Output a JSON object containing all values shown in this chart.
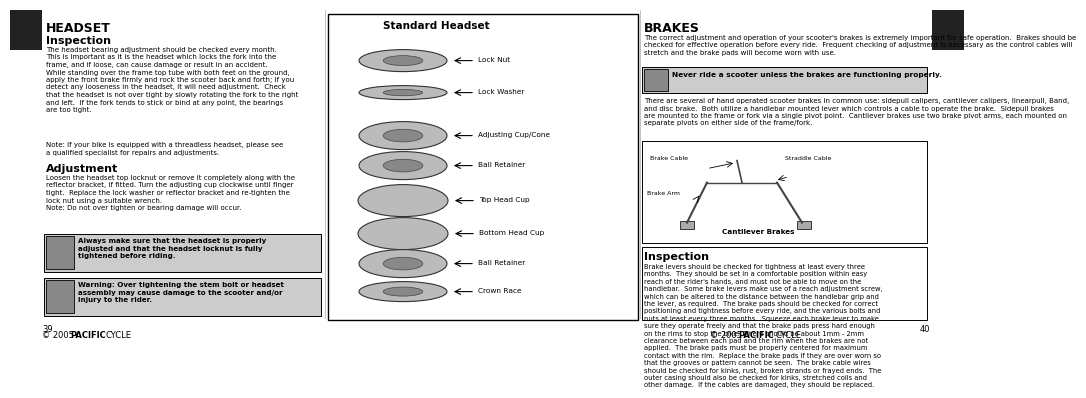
{
  "page_bg": "#ffffff",
  "headset_title": "HEADSET",
  "inspection_h1": "Inspection",
  "inspection_text": "The headset bearing adjustment should be checked every month.\nThis is important as it is the headset which locks the fork into the\nframe, and if loose, can cause damage or result in an accident.\nWhile standing over the frame top tube with both feet on the ground,\napply the front brake firmly and rock the scooter back and forth; if you\ndetect any looseness in the headset, it will need adjustment.  Check\nthat the headset is not over tight by slowly rotating the fork to the right\nand left.  If the fork tends to stick or bind at any point, the bearings\nare too tight.",
  "note_text": "Note: If your bike is equipped with a threadless headset, please see\na qualified specialist for repairs and adjustments.",
  "adjustment_h1": "Adjustment",
  "adjustment_text": "Loosen the headset top locknut or remove it completely along with the\nreflector bracket, if fitted. Turn the adjusting cup clockwise until finger\ntight.  Replace the lock washer or reflector bracket and re-tighten the\nlock nut using a suitable wrench.\nNote: Do not over tighten or bearing damage will occur.",
  "warning1_bold": "Always make sure that the headset is properly\nadjusted and that the headset locknut is fully\ntightened before riding.",
  "warning2_text": "Warning: Over tightening the stem bolt or headset\nassembly may cause damage to the scooter and/or\ninjury to the rider.",
  "page_num_left": "39",
  "center_title": "Standard Headset",
  "center_labels": [
    "Lock Nut",
    "Lock Washer",
    "Adjusting Cup/Cone",
    "Ball Retainer",
    "Top Head Cup",
    "Bottom Head Cup",
    "Ball Retainer",
    "Crown Race"
  ],
  "brakes_title": "BRAKES",
  "brakes_intro": "The correct adjustment and operation of your scooter's brakes is extremely important for safe operation.  Brakes should be\nchecked for effective operation before every ride.  Frequent checking of adjustment is necessary as the control cables will\nstretch and the brake pads will become worn with use.",
  "never_ride_bold": "Never ride a scooter unless the brakes are functioning properly.",
  "brakes_types": "There are several of hand operated scooter brakes in common use: sidepull calipers, cantilever calipers, linearpull, Band,\nand disc brake.  Both utilize a handlebar mounted lever which controls a cable to operate the brake.  Sidepull brakes\nare mounted to the frame or fork via a single pivot point.  Cantilever brakes use two brake pivot arms, each mounted on\nseparate pivots on either side of the frame/fork.",
  "cantilever_caption": "Cantilever Brakes",
  "brake_inspection_h1": "Inspection",
  "brake_inspection_text": "Brake levers should be checked for tightness at least every three\nmonths.  They should be set in a comfortable position within easy\nreach of the rider's hands, and must not be able to move on the\nhandlebar.  Some brake levers make use of a reach adjustment screw,\nwhich can be altered to the distance between the handlebar grip and\nthe lever, as required.  The brake pads should be checked for correct\npositioning and tightness before every ride, and the various bolts and\nnuts at least every three months.  Squeeze each brake lever to make\nsure they operate freely and that the brake pads press hard enough\non the rims to stop the bike.  There should be about 1mm - 2mm\nclearance between each pad and the rim when the brakes are not\napplied.  The brake pads must be properly centered for maximum\ncontact with the rim.  Replace the brake pads if they are over worn so\nthat the grooves or pattern cannot be seen.  The brake cable wires\nshould be checked for kinks, rust, broken strands or frayed ends.  The\nouter casing should also be checked for kinks, stretched coils and\nother damage.  If the cables are damaged, they should be replaced.",
  "page_num_right": "40"
}
